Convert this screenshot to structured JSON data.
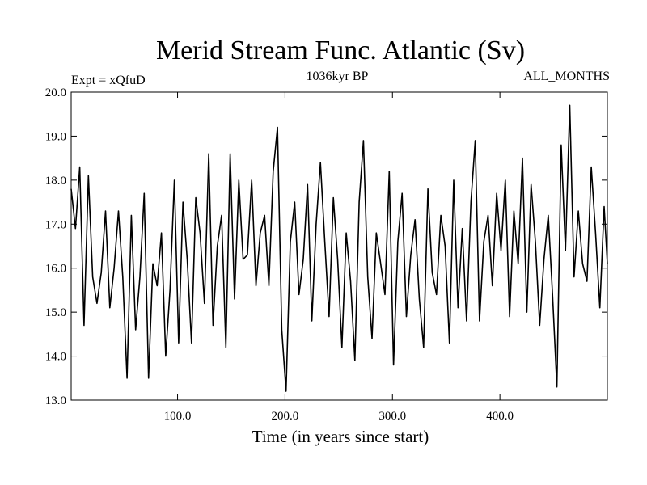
{
  "chart_data": {
    "type": "line",
    "title": "Merid Stream Func. Atlantic (Sv)",
    "subtitle_left": "Expt = xQfuD",
    "subtitle_center": "1036kyr BP",
    "subtitle_right": "ALL_MONTHS",
    "xlabel": "Time (in years since start)",
    "ylabel": "",
    "xlim": [
      1,
      500
    ],
    "ylim": [
      13.0,
      20.0
    ],
    "x_ticks": [
      100,
      200,
      300,
      400
    ],
    "x_tick_labels": [
      "100.0",
      "200.0",
      "300.0",
      "400.0"
    ],
    "y_ticks": [
      13,
      14,
      15,
      16,
      17,
      18,
      19,
      20
    ],
    "y_tick_labels": [
      "13.0",
      "14.0",
      "15.0",
      "16.0",
      "17.0",
      "18.0",
      "19.0",
      "20.0"
    ],
    "grid": false,
    "line_color": "#000000",
    "series": [
      {
        "x": [
          1,
          5,
          9,
          13,
          17,
          21,
          25,
          29,
          33,
          37,
          41,
          45,
          49,
          53,
          57,
          61,
          65,
          69,
          73,
          77,
          81,
          85,
          89,
          93,
          97,
          101,
          105,
          109,
          113,
          117,
          121,
          125,
          129,
          133,
          137,
          141,
          145,
          149,
          153,
          157,
          161,
          165,
          169,
          173,
          177,
          181,
          185,
          189,
          193,
          197,
          201,
          205,
          209,
          213,
          217,
          221,
          225,
          229,
          233,
          237,
          241,
          245,
          249,
          253,
          257,
          261,
          265,
          269,
          273,
          277,
          281,
          285,
          289,
          293,
          297,
          301,
          305,
          309,
          313,
          317,
          321,
          325,
          329,
          333,
          337,
          341,
          345,
          349,
          353,
          357,
          361,
          365,
          369,
          373,
          377,
          381,
          385,
          389,
          393,
          397,
          401,
          405,
          409,
          413,
          417,
          421,
          425,
          429,
          433,
          437,
          441,
          445,
          449,
          453,
          457,
          461,
          465,
          469,
          473,
          477,
          481,
          485,
          489,
          493,
          497,
          500
        ],
        "y": [
          17.8,
          16.9,
          18.3,
          14.7,
          18.1,
          15.8,
          15.2,
          15.9,
          17.3,
          15.1,
          16.0,
          17.3,
          15.8,
          13.5,
          17.2,
          14.6,
          15.8,
          17.7,
          13.5,
          16.1,
          15.6,
          16.8,
          14.0,
          15.5,
          18.0,
          14.3,
          17.5,
          16.2,
          14.3,
          17.6,
          16.8,
          15.2,
          18.6,
          14.7,
          16.5,
          17.2,
          14.2,
          18.6,
          15.3,
          18.0,
          16.2,
          16.3,
          18.0,
          15.6,
          16.8,
          17.2,
          15.6,
          18.2,
          19.2,
          14.6,
          13.2,
          16.6,
          17.5,
          15.4,
          16.2,
          17.9,
          14.8,
          17.0,
          18.4,
          16.6,
          14.9,
          17.6,
          16.2,
          14.2,
          16.8,
          15.7,
          13.9,
          17.5,
          18.9,
          15.8,
          14.4,
          16.8,
          16.1,
          15.4,
          18.2,
          13.8,
          16.6,
          17.7,
          14.9,
          16.3,
          17.1,
          15.3,
          14.2,
          17.8,
          15.9,
          15.4,
          17.2,
          16.5,
          14.3,
          18.0,
          15.1,
          16.9,
          14.8,
          17.5,
          18.9,
          14.8,
          16.6,
          17.2,
          15.6,
          17.7,
          16.4,
          18.0,
          14.9,
          17.3,
          16.1,
          18.5,
          15.0,
          17.9,
          16.6,
          14.7,
          16.2,
          17.2,
          15.4,
          13.3,
          18.8,
          16.4,
          19.7,
          15.8,
          17.3,
          16.1,
          15.7,
          18.3,
          16.8,
          15.1,
          17.4,
          16.1
        ]
      }
    ]
  }
}
